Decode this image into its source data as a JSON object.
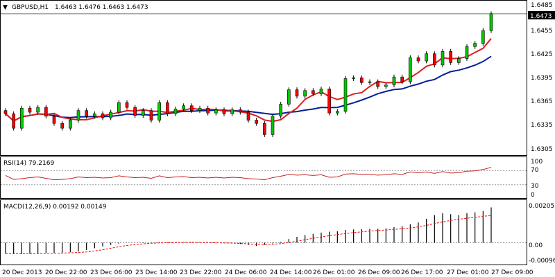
{
  "header": {
    "arrow": "▼",
    "symbol": "GBPUSD,H1",
    "ohlc": "1.6463 1.6476 1.6463 1.6473"
  },
  "price_axis": {
    "ticks": [
      "1.6485",
      "1.6455",
      "1.6425",
      "1.6395",
      "1.6365",
      "1.6335",
      "1.6305"
    ],
    "current_price_label": "1.6473"
  },
  "rsi": {
    "label": "RSI(14) 79.2169",
    "levels": [
      "100",
      "70",
      "30",
      "0"
    ]
  },
  "macd": {
    "label": "MACD(12,26,9) 0.00192 0.00149",
    "levels": [
      "0.00205",
      "0.00",
      "-0.00096"
    ]
  },
  "time_axis": [
    "20 Dec 2013",
    "20 Dec 22:00",
    "23 Dec 06:00",
    "23 Dec 14:00",
    "23 Dec 22:00",
    "24 Dec 06:00",
    "24 Dec 14:00",
    "26 Dec 01:00",
    "26 Dec 09:00",
    "26 Dec 17:00",
    "27 Dec 01:00",
    "27 Dec 09:00"
  ],
  "colors": {
    "bull": "#00c800",
    "bear": "#ff0000",
    "wick": "#000000",
    "ma_fast": "#dc1e1e",
    "ma_slow": "#001e96",
    "rsi": "#c81e1e",
    "macd_hist": "#000000",
    "macd_signal": "#ff0000",
    "frame": "#000000",
    "current_line": "#5a7f5a"
  },
  "chart_data": [
    {
      "type": "candlestick",
      "title": "GBPUSD,H1",
      "ylim": [
        1.6295,
        1.649
      ],
      "current_price": 1.6473,
      "series": [
        {
          "name": "price",
          "values": [
            1.6348,
            1.633,
            1.6355,
            1.635,
            1.6356,
            1.6345,
            1.6336,
            1.633,
            1.634,
            1.6352,
            1.6345,
            1.6348,
            1.6343,
            1.635,
            1.6362,
            1.6356,
            1.6346,
            1.6352,
            1.634,
            1.6362,
            1.6348,
            1.6354,
            1.6358,
            1.6352,
            1.6355,
            1.6349,
            1.6353,
            1.6348,
            1.6353,
            1.635,
            1.634,
            1.6336,
            1.6322,
            1.6345,
            1.636,
            1.6378,
            1.637,
            1.6377,
            1.6373,
            1.6379,
            1.6349,
            1.6351,
            1.6392,
            1.6393,
            1.6387,
            1.6388,
            1.6382,
            1.6384,
            1.6394,
            1.6388,
            1.6418,
            1.6414,
            1.6423,
            1.6409,
            1.6426,
            1.6412,
            1.6417,
            1.6432,
            1.6436,
            1.6452,
            1.6473
          ]
        }
      ]
    },
    {
      "type": "line",
      "title": "RSI(14) 79.2169",
      "ylim": [
        0,
        100
      ],
      "series": [
        {
          "name": "RSI(14)",
          "values": [
            56,
            45,
            47,
            50,
            52,
            48,
            44,
            45,
            47,
            52,
            50,
            51,
            49,
            50,
            55,
            52,
            50,
            51,
            48,
            55,
            50,
            52,
            53,
            50,
            51,
            49,
            51,
            49,
            51,
            50,
            47,
            46,
            44,
            50,
            54,
            59,
            57,
            58,
            56,
            58,
            51,
            52,
            60,
            61,
            59,
            59,
            57,
            58,
            61,
            59,
            66,
            64,
            66,
            62,
            67,
            63,
            64,
            68,
            69,
            73,
            79.2
          ]
        }
      ]
    },
    {
      "type": "bar",
      "title": "MACD(12,26,9) 0.00192 0.00149",
      "ylim": [
        -0.00096,
        0.00205
      ],
      "series": [
        {
          "name": "MACD",
          "values": [
            -0.0006,
            -0.00062,
            -0.00061,
            -0.0006,
            -0.00058,
            -0.00056,
            -0.00055,
            -0.00054,
            -0.00052,
            -0.00048,
            -0.0004,
            -0.0003,
            -0.0002,
            -0.00012,
            -5e-05,
            0.0,
            0.0,
            2e-05,
            1e-05,
            3e-05,
            2e-05,
            3e-05,
            3e-05,
            2e-05,
            2e-05,
            0.0,
            0.0,
            -3e-05,
            -4e-05,
            -7e-05,
            -0.00012,
            -0.00018,
            -0.00012,
            -4e-05,
            5e-05,
            0.0002,
            0.00032,
            0.00042,
            0.00048,
            0.00055,
            0.0006,
            0.00062,
            0.0007,
            0.00072,
            0.00074,
            0.00075,
            0.00076,
            0.00078,
            0.00085,
            0.0009,
            0.001,
            0.0011,
            0.0013,
            0.0015,
            0.0016,
            0.00155,
            0.0015,
            0.0016,
            0.00165,
            0.00172,
            0.00192
          ]
        },
        {
          "name": "Signal",
          "values": [
            -0.00059,
            -0.00059,
            -0.0006,
            -0.0006,
            -0.00059,
            -0.00058,
            -0.00057,
            -0.00056,
            -0.00055,
            -0.00053,
            -0.0005,
            -0.00045,
            -0.00038,
            -0.0003,
            -0.00022,
            -0.00015,
            -0.0001,
            -6e-05,
            -3e-05,
            -1e-05,
            0.0,
            1e-05,
            2e-05,
            2e-05,
            2e-05,
            1e-05,
            0.0,
            -1e-05,
            -2e-05,
            -4e-05,
            -6e-05,
            -9e-05,
            -0.0001,
            -8e-05,
            -5e-05,
            1e-05,
            8e-05,
            0.00016,
            0.00024,
            0.00031,
            0.00038,
            0.00044,
            0.0005,
            0.00055,
            0.00059,
            0.00063,
            0.00066,
            0.00069,
            0.00072,
            0.00076,
            0.0008,
            0.00086,
            0.00094,
            0.00104,
            0.00113,
            0.00121,
            0.00127,
            0.00133,
            0.00138,
            0.00143,
            0.00149
          ]
        }
      ]
    }
  ]
}
